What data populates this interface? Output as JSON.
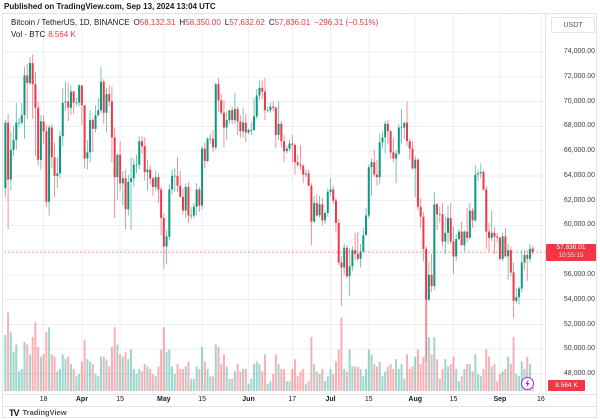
{
  "published_line": "Published on TradingView.com, Sep 13, 2024 13:04 UTC",
  "header": {
    "symbol": "Bitcoin / TetherUS, 1D, BINANCE",
    "ohlc": [
      {
        "k": "O",
        "v": "58,132.31"
      },
      {
        "k": "H",
        "v": "58,350.00"
      },
      {
        "k": "L",
        "v": "57,632.62"
      },
      {
        "k": "C",
        "v": "57,836.01"
      }
    ],
    "change": "−296.31 (−0.51%)",
    "vol_label": "Vol · BTC",
    "vol_value": "8.564 K"
  },
  "price_axis": {
    "currency": "USDT",
    "price_label": {
      "price": "57,836.01",
      "countdown": "10:55:15"
    },
    "volume_label": "8.564 K"
  },
  "footer": {
    "logo_glyph": "TV",
    "brand": "TradingView"
  },
  "colors": {
    "up": "#089981",
    "down": "#f23645",
    "grid": "#edeff2",
    "border": "#e0e3eb",
    "axis_text": "#3c4047",
    "event": "#9333ea"
  },
  "chart_data": {
    "type": "candlestick+volume",
    "symbol": "BTCUSDT",
    "exchange": "BINANCE",
    "interval": "1D",
    "start_date": "2024-03-04",
    "end_date": "2024-09-13",
    "last_price": 57836.01,
    "ylim": [
      46500,
      77000
    ],
    "grid_prices": [
      48000,
      50000,
      52000,
      54000,
      56000,
      58000,
      60000,
      62000,
      64000,
      66000,
      68000,
      70000,
      72000,
      74000
    ],
    "volume_unit": "K BTC",
    "time_ticks": [
      {
        "label": "18",
        "index": 14,
        "major": false
      },
      {
        "label": "Apr",
        "index": 28,
        "major": true
      },
      {
        "label": "15",
        "index": 42,
        "major": false
      },
      {
        "label": "May",
        "index": 58,
        "major": true
      },
      {
        "label": "15",
        "index": 72,
        "major": false
      },
      {
        "label": "Jun",
        "index": 89,
        "major": true
      },
      {
        "label": "17",
        "index": 105,
        "major": false
      },
      {
        "label": "Jul",
        "index": 119,
        "major": true
      },
      {
        "label": "15",
        "index": 133,
        "major": false
      },
      {
        "label": "Aug",
        "index": 150,
        "major": true
      },
      {
        "label": "15",
        "index": 164,
        "major": false
      },
      {
        "label": "Sep",
        "index": 181,
        "major": true
      },
      {
        "label": "16",
        "index": 196,
        "major": false
      }
    ],
    "columns": [
      "open",
      "high",
      "low",
      "close",
      "volume_kbtc"
    ],
    "candles": [
      [
        63000,
        68500,
        62300,
        68300,
        115
      ],
      [
        68300,
        69000,
        59700,
        63700,
        160
      ],
      [
        63700,
        67600,
        62800,
        66100,
        120
      ],
      [
        66100,
        68000,
        65600,
        66900,
        80
      ],
      [
        66900,
        69900,
        66100,
        68300,
        95
      ],
      [
        68300,
        68700,
        67900,
        68300,
        40
      ],
      [
        68300,
        69900,
        68100,
        68900,
        45
      ],
      [
        68900,
        72800,
        67000,
        72100,
        100
      ],
      [
        72100,
        73000,
        68600,
        71500,
        95
      ],
      [
        71500,
        73600,
        71300,
        73100,
        75
      ],
      [
        73100,
        73800,
        68600,
        71400,
        110
      ],
      [
        71400,
        72400,
        65600,
        69500,
        140
      ],
      [
        69500,
        70000,
        64800,
        65300,
        90
      ],
      [
        65300,
        68900,
        64500,
        68400,
        70
      ],
      [
        68400,
        68900,
        66600,
        67600,
        75
      ],
      [
        67600,
        68100,
        61500,
        61900,
        120
      ],
      [
        61900,
        68100,
        60800,
        67900,
        130
      ],
      [
        67900,
        68200,
        64600,
        65500,
        75
      ],
      [
        65500,
        66700,
        62300,
        64000,
        70
      ],
      [
        64000,
        65500,
        63000,
        64200,
        40
      ],
      [
        64200,
        67600,
        63800,
        67200,
        45
      ],
      [
        67200,
        71100,
        66400,
        69900,
        75
      ],
      [
        69900,
        71600,
        69300,
        70000,
        65
      ],
      [
        70000,
        71500,
        68400,
        69500,
        70
      ],
      [
        69500,
        71300,
        68900,
        70800,
        55
      ],
      [
        70800,
        70900,
        69000,
        69900,
        45
      ],
      [
        69900,
        70300,
        69600,
        69900,
        30
      ],
      [
        69900,
        71400,
        69600,
        71300,
        35
      ],
      [
        71300,
        71300,
        68100,
        69700,
        60
      ],
      [
        69700,
        69700,
        64600,
        65400,
        105
      ],
      [
        65400,
        66900,
        64500,
        65900,
        65
      ],
      [
        65900,
        69300,
        65100,
        68500,
        60
      ],
      [
        68500,
        68700,
        65900,
        67800,
        55
      ],
      [
        67800,
        69700,
        67500,
        68900,
        35
      ],
      [
        68900,
        70300,
        68800,
        69300,
        30
      ],
      [
        69300,
        72800,
        69100,
        71600,
        70
      ],
      [
        71600,
        71800,
        68200,
        69100,
        70
      ],
      [
        69100,
        71100,
        67500,
        70600,
        65
      ],
      [
        70600,
        71300,
        69600,
        70000,
        50
      ],
      [
        70000,
        71200,
        65100,
        67100,
        90
      ],
      [
        67100,
        67900,
        60600,
        63900,
        130
      ],
      [
        63900,
        65800,
        62100,
        65700,
        95
      ],
      [
        65700,
        66800,
        62800,
        63400,
        75
      ],
      [
        63400,
        64400,
        61600,
        63800,
        70
      ],
      [
        63800,
        64500,
        59700,
        61300,
        80
      ],
      [
        61300,
        64100,
        60800,
        63500,
        65
      ],
      [
        63500,
        65500,
        59600,
        63800,
        85
      ],
      [
        63800,
        65400,
        63100,
        64900,
        45
      ],
      [
        64900,
        65700,
        64200,
        64900,
        35
      ],
      [
        64900,
        67200,
        64500,
        66800,
        45
      ],
      [
        66800,
        67200,
        65800,
        66400,
        40
      ],
      [
        66400,
        67100,
        63600,
        64300,
        55
      ],
      [
        64300,
        65300,
        62800,
        64500,
        50
      ],
      [
        64500,
        64800,
        63300,
        63800,
        45
      ],
      [
        63800,
        63900,
        62400,
        63100,
        35
      ],
      [
        63100,
        64400,
        62800,
        63900,
        30
      ],
      [
        63900,
        64200,
        61800,
        62900,
        50
      ],
      [
        62900,
        63100,
        59200,
        60600,
        85
      ],
      [
        60600,
        60900,
        56500,
        58300,
        130
      ],
      [
        58300,
        59600,
        56900,
        59100,
        80
      ],
      [
        59100,
        63300,
        58800,
        62900,
        85
      ],
      [
        62900,
        64500,
        62500,
        64000,
        50
      ],
      [
        64000,
        64600,
        62700,
        64000,
        35
      ],
      [
        64000,
        65500,
        62700,
        63200,
        55
      ],
      [
        63200,
        64400,
        62300,
        62300,
        45
      ],
      [
        62300,
        63000,
        60900,
        61200,
        45
      ],
      [
        61200,
        63400,
        60600,
        63100,
        50
      ],
      [
        63100,
        63500,
        60200,
        60800,
        60
      ],
      [
        60800,
        61500,
        60500,
        60800,
        25
      ],
      [
        60800,
        61800,
        60600,
        61500,
        25
      ],
      [
        61500,
        63400,
        60800,
        62900,
        50
      ],
      [
        62900,
        63100,
        61100,
        61600,
        45
      ],
      [
        61600,
        66400,
        61300,
        66200,
        90
      ],
      [
        66200,
        66700,
        64600,
        65200,
        60
      ],
      [
        65200,
        67100,
        65100,
        67000,
        45
      ],
      [
        67000,
        67400,
        66600,
        67000,
        30
      ],
      [
        67000,
        67700,
        65900,
        66300,
        30
      ],
      [
        66300,
        71500,
        66100,
        71400,
        95
      ],
      [
        71400,
        71900,
        69200,
        70100,
        90
      ],
      [
        70100,
        70600,
        68900,
        69100,
        55
      ],
      [
        69100,
        70100,
        66300,
        67900,
        75
      ],
      [
        67900,
        69200,
        66900,
        68500,
        50
      ],
      [
        68500,
        69300,
        68200,
        69300,
        25
      ],
      [
        69300,
        69600,
        68200,
        68500,
        25
      ],
      [
        68500,
        70700,
        68200,
        69400,
        40
      ],
      [
        69400,
        69600,
        67300,
        68400,
        55
      ],
      [
        68400,
        68900,
        67100,
        67600,
        40
      ],
      [
        67600,
        69500,
        67100,
        68300,
        45
      ],
      [
        68300,
        69000,
        66700,
        67500,
        45
      ],
      [
        67500,
        67800,
        67400,
        67700,
        15
      ],
      [
        67700,
        68400,
        67300,
        67700,
        25
      ],
      [
        67700,
        70300,
        67600,
        68800,
        55
      ],
      [
        68800,
        71000,
        68600,
        70500,
        60
      ],
      [
        70500,
        71700,
        70100,
        71100,
        55
      ],
      [
        71100,
        71700,
        70200,
        70800,
        40
      ],
      [
        70800,
        71900,
        68500,
        69300,
        75
      ],
      [
        69300,
        69600,
        69100,
        69300,
        15
      ],
      [
        69300,
        69900,
        69100,
        69600,
        20
      ],
      [
        69600,
        70000,
        69200,
        69500,
        35
      ],
      [
        69500,
        69600,
        66200,
        67300,
        75
      ],
      [
        67300,
        70000,
        66900,
        68200,
        55
      ],
      [
        68200,
        68400,
        66300,
        66800,
        45
      ],
      [
        66800,
        67300,
        65100,
        66000,
        45
      ],
      [
        66000,
        66400,
        65800,
        66200,
        20
      ],
      [
        66200,
        66900,
        66000,
        66600,
        20
      ],
      [
        66600,
        67300,
        65100,
        66500,
        45
      ],
      [
        66500,
        66600,
        64100,
        65100,
        65
      ],
      [
        65100,
        65700,
        64700,
        64900,
        30
      ],
      [
        64900,
        66500,
        64500,
        64800,
        40
      ],
      [
        64800,
        65000,
        63400,
        64100,
        45
      ],
      [
        64100,
        64500,
        63900,
        64200,
        15
      ],
      [
        64200,
        64500,
        63200,
        63200,
        20
      ],
      [
        63200,
        63400,
        58400,
        60300,
        110
      ],
      [
        60300,
        62400,
        60200,
        61800,
        55
      ],
      [
        61800,
        62500,
        60700,
        60800,
        40
      ],
      [
        60800,
        62400,
        60600,
        61700,
        35
      ],
      [
        61700,
        62200,
        60000,
        60400,
        45
      ],
      [
        60400,
        61200,
        60100,
        61000,
        20
      ],
      [
        61000,
        63000,
        60700,
        62700,
        30
      ],
      [
        62700,
        63800,
        62400,
        62900,
        45
      ],
      [
        62900,
        63200,
        61700,
        62000,
        35
      ],
      [
        62000,
        62200,
        59400,
        60200,
        60
      ],
      [
        60200,
        60500,
        56800,
        57000,
        85
      ],
      [
        57000,
        57500,
        53500,
        56600,
        150
      ],
      [
        56600,
        58500,
        56000,
        58200,
        45
      ],
      [
        58200,
        58400,
        55700,
        55900,
        40
      ],
      [
        55900,
        58200,
        54300,
        56700,
        85
      ],
      [
        56700,
        58300,
        56300,
        58000,
        50
      ],
      [
        58000,
        59400,
        57200,
        57700,
        50
      ],
      [
        57700,
        59500,
        57100,
        57300,
        50
      ],
      [
        57300,
        58500,
        56600,
        57900,
        45
      ],
      [
        57900,
        59800,
        57800,
        59200,
        30
      ],
      [
        59200,
        61400,
        59200,
        60800,
        45
      ],
      [
        60800,
        64900,
        60600,
        64700,
        85
      ],
      [
        64700,
        65400,
        62400,
        65100,
        75
      ],
      [
        65100,
        66100,
        63900,
        64100,
        55
      ],
      [
        64100,
        65300,
        63200,
        63900,
        50
      ],
      [
        63900,
        67400,
        63300,
        66700,
        60
      ],
      [
        66700,
        67600,
        66200,
        67100,
        30
      ],
      [
        67100,
        68400,
        65800,
        68200,
        40
      ],
      [
        68200,
        68500,
        66600,
        67600,
        50
      ],
      [
        67600,
        67700,
        65400,
        65900,
        55
      ],
      [
        65900,
        67000,
        65100,
        65400,
        45
      ],
      [
        65400,
        66100,
        63400,
        65800,
        65
      ],
      [
        65800,
        68200,
        65700,
        67900,
        45
      ],
      [
        67900,
        69400,
        66600,
        67900,
        55
      ],
      [
        67900,
        68300,
        67000,
        68300,
        25
      ],
      [
        68300,
        70000,
        66400,
        66800,
        75
      ],
      [
        66800,
        67000,
        65300,
        66200,
        45
      ],
      [
        66200,
        66800,
        64500,
        64600,
        50
      ],
      [
        64600,
        65600,
        62300,
        65300,
        70
      ],
      [
        65300,
        65400,
        61200,
        61500,
        85
      ],
      [
        61500,
        62200,
        59800,
        60700,
        55
      ],
      [
        60700,
        61100,
        57100,
        58100,
        70
      ],
      [
        58100,
        58300,
        49000,
        54000,
        245
      ],
      [
        54000,
        57000,
        53900,
        56000,
        110
      ],
      [
        56000,
        57700,
        54600,
        55100,
        75
      ],
      [
        55100,
        62700,
        54800,
        61700,
        110
      ],
      [
        61700,
        61800,
        59600,
        60900,
        65
      ],
      [
        60900,
        61500,
        60200,
        60900,
        25
      ],
      [
        60900,
        61800,
        58300,
        58700,
        45
      ],
      [
        58700,
        60700,
        57700,
        59400,
        65
      ],
      [
        59400,
        61600,
        58500,
        60600,
        50
      ],
      [
        60600,
        61800,
        58500,
        58700,
        55
      ],
      [
        58700,
        59900,
        56100,
        57500,
        70
      ],
      [
        57500,
        59300,
        57100,
        58900,
        45
      ],
      [
        58900,
        59700,
        58800,
        59500,
        20
      ],
      [
        59500,
        60300,
        58400,
        58400,
        30
      ],
      [
        58400,
        59600,
        57900,
        59500,
        45
      ],
      [
        59500,
        61400,
        58600,
        59000,
        55
      ],
      [
        59000,
        61800,
        58800,
        61200,
        55
      ],
      [
        61200,
        61400,
        59800,
        60400,
        40
      ],
      [
        60400,
        64900,
        60300,
        64100,
        75
      ],
      [
        64100,
        64500,
        63600,
        64200,
        35
      ],
      [
        64200,
        65000,
        63800,
        64300,
        30
      ],
      [
        64300,
        64500,
        62800,
        62900,
        45
      ],
      [
        62900,
        63200,
        58100,
        59500,
        85
      ],
      [
        59500,
        60200,
        57900,
        59000,
        70
      ],
      [
        59000,
        61200,
        58700,
        59400,
        50
      ],
      [
        59400,
        59900,
        57700,
        59100,
        55
      ],
      [
        59100,
        59400,
        58600,
        59000,
        20
      ],
      [
        59000,
        59100,
        57200,
        57300,
        35
      ],
      [
        57300,
        59400,
        57100,
        59100,
        40
      ],
      [
        59100,
        59800,
        57400,
        57500,
        45
      ],
      [
        57500,
        58500,
        55600,
        58000,
        70
      ],
      [
        58000,
        58300,
        55900,
        56200,
        55
      ],
      [
        56200,
        57000,
        52500,
        53900,
        110
      ],
      [
        53900,
        54900,
        53700,
        54200,
        35
      ],
      [
        54200,
        55100,
        53600,
        54900,
        30
      ],
      [
        54900,
        58000,
        54600,
        57000,
        60
      ],
      [
        57000,
        58000,
        56400,
        57600,
        45
      ],
      [
        57600,
        58000,
        55500,
        57300,
        70
      ],
      [
        57300,
        58500,
        57000,
        58100,
        55
      ],
      [
        58132,
        58350,
        57632,
        57836,
        8.56
      ]
    ]
  }
}
